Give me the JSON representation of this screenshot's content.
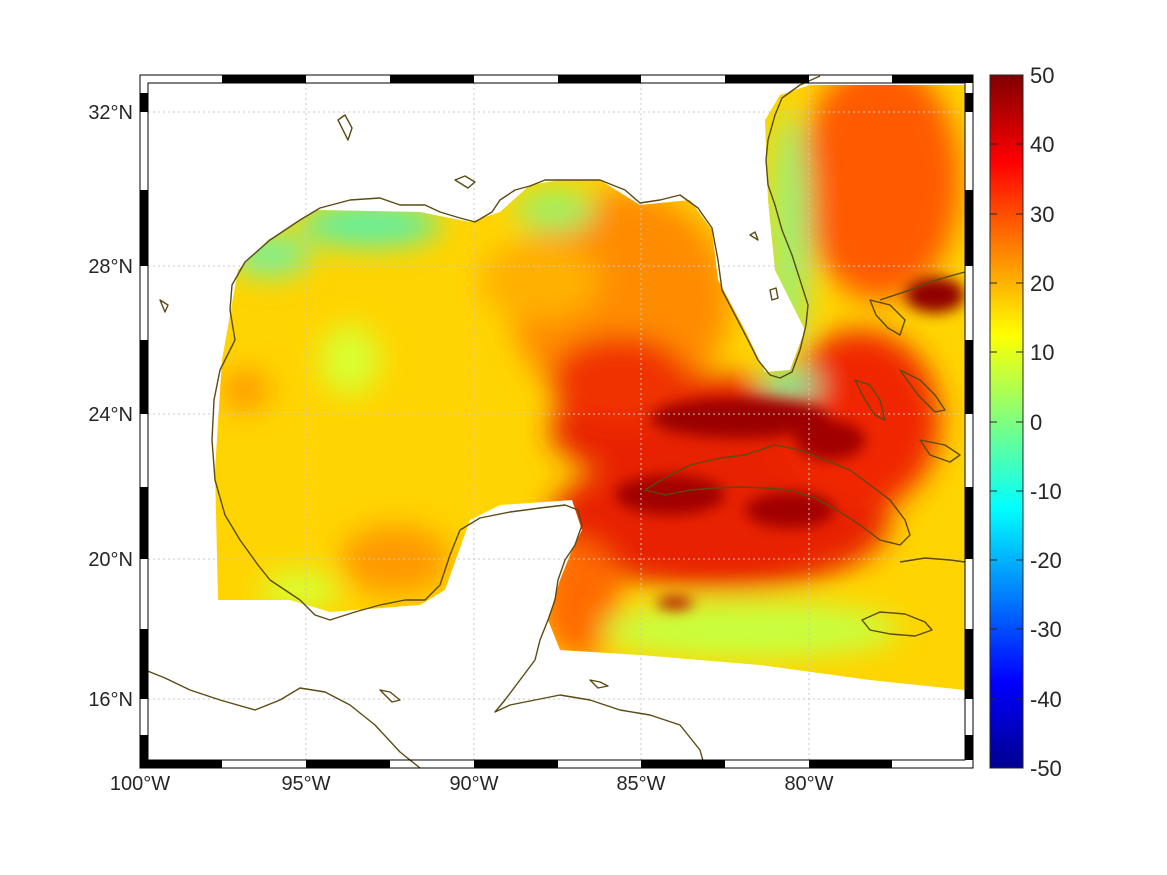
{
  "map": {
    "lon_ticks": [
      "100°W",
      "95°W",
      "90°W",
      "85°W",
      "80°W"
    ],
    "lat_ticks": [
      "32°N",
      "28°N",
      "24°N",
      "20°N",
      "16°N"
    ],
    "lon_range": [
      -100,
      -75
    ],
    "lat_range": [
      14.2,
      33
    ],
    "grid": true,
    "frame": "checkered"
  },
  "colorbar": {
    "ticks": [
      "50",
      "40",
      "30",
      "20",
      "10",
      "0",
      "-10",
      "-20",
      "-30",
      "-40",
      "-50"
    ],
    "range": [
      -50,
      50
    ],
    "colormap": "jet"
  },
  "colors": {
    "coastline": "#5b4a12",
    "grid": "#c8c8c8",
    "frame": "#000000"
  }
}
